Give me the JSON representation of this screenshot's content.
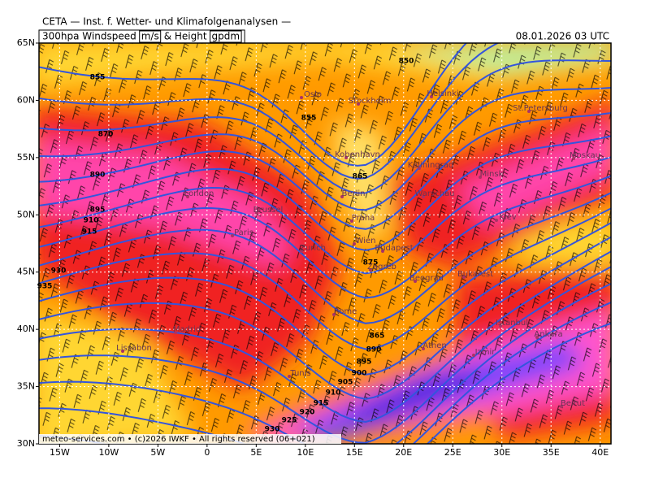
{
  "header": "CETA — Inst. f. Wetter- und Klimafolgenanalysen —",
  "map": {
    "title": [
      "300hpa Windspeed",
      "m/s",
      "& Height",
      "gpdm"
    ],
    "date": "08.01.2026 03 UTC",
    "xlim": [
      -17.1,
      41.1
    ],
    "ylim": [
      30,
      65
    ],
    "xticks": [
      {
        "value": -15,
        "label": "15W"
      },
      {
        "value": -10,
        "label": "10W"
      },
      {
        "value": -5,
        "label": "5W"
      },
      0,
      {
        "value": 5,
        "label": "5E"
      },
      {
        "value": 10,
        "label": "10E"
      },
      {
        "value": 15,
        "label": "15E"
      },
      {
        "value": 20,
        "label": "20E"
      },
      {
        "value": 25,
        "label": "25E"
      },
      {
        "value": 30,
        "label": "30E"
      },
      {
        "value": 35,
        "label": "35E"
      },
      {
        "value": 40,
        "label": "40E"
      }
    ],
    "yticks": [
      {
        "value": 30,
        "label": "30N"
      },
      {
        "value": 35,
        "label": "35N"
      },
      {
        "value": 40,
        "label": "40N"
      },
      {
        "value": 45,
        "label": "45N"
      },
      {
        "value": 50,
        "label": "50N"
      },
      {
        "value": 55,
        "label": "55N"
      },
      {
        "value": 60,
        "label": "60N"
      },
      {
        "value": 65,
        "label": "65N"
      }
    ],
    "cities": [
      "Oslo",
      "Stockholm",
      "Helsinki",
      "St.Petersburg",
      "Kobenhavn",
      "Kaliningrad",
      "Minsk",
      "Moskau",
      "London",
      "Berlin",
      "Warschau",
      "Brussel",
      "Praha",
      "Kiev",
      "Paris",
      "Wien",
      "Budapest",
      "Zurich",
      "Zagreb",
      "Beograd",
      "Bukarest",
      "Rome",
      "Istanbul",
      "Madrid",
      "Ankara",
      "Lissabon",
      "Athen",
      "Izmir",
      "Tunis",
      "Beirut"
    ],
    "contour_labels": [
      "850",
      "855",
      "855",
      "870",
      "890",
      "895",
      "910",
      "915",
      "930",
      "935",
      "865",
      "875",
      "865",
      "890",
      "895",
      "900",
      "905",
      "910",
      "915",
      "920",
      "925",
      "930"
    ],
    "footer": "meteo-services.com • (c)2026 IWKF • All rights reserved (06+021)"
  }
}
